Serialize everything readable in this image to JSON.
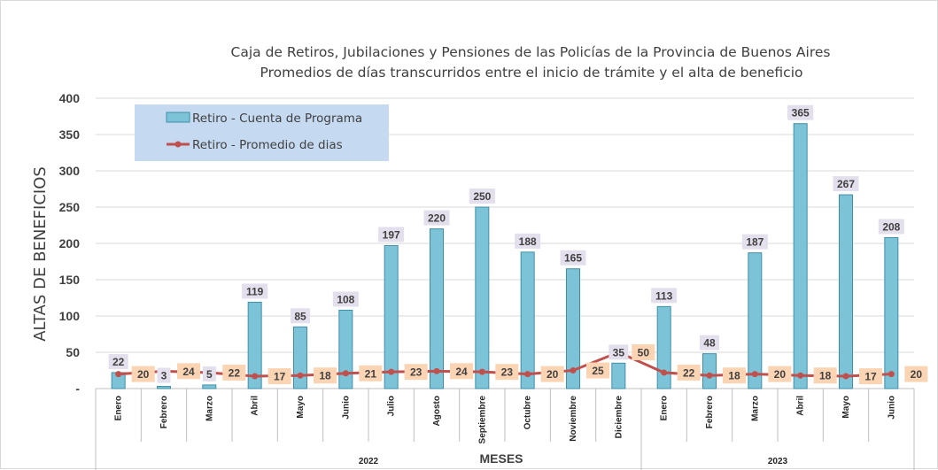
{
  "chart_data": {
    "type": "bar",
    "title": "Caja de Retiros, Jubilaciones y Pensiones de las Policías de la Provincia de Buenos Aires",
    "subtitle": "Promedios de días transcurridos entre el inicio de trámite y el alta de beneficio",
    "ylabel": "ALTAS DE BENEFICIOS",
    "xlabel": "MESES",
    "ylim": [
      0,
      400
    ],
    "yticks": [
      {
        "value": 0,
        "label": "-"
      },
      {
        "value": 50,
        "label": "50"
      },
      {
        "value": 100,
        "label": "100"
      },
      {
        "value": 150,
        "label": "150"
      },
      {
        "value": 200,
        "label": "200"
      },
      {
        "value": 250,
        "label": "250"
      },
      {
        "value": 300,
        "label": "300"
      },
      {
        "value": 350,
        "label": "350"
      },
      {
        "value": 400,
        "label": "400"
      }
    ],
    "grid": true,
    "legend_position": "top-left",
    "categories": [
      "Enero",
      "Febrero",
      "Marzo",
      "Abril",
      "Mayo",
      "Junio",
      "Julio",
      "Agosto",
      "Septiembre",
      "Octubre",
      "Noviembre",
      "Diciembre",
      "Enero",
      "Febrero",
      "Marzo",
      "Abril",
      "Mayo",
      "Junio"
    ],
    "groups": [
      {
        "label": "2022",
        "count": 12
      },
      {
        "label": "2023",
        "count": 6
      }
    ],
    "series": [
      {
        "name": "Retiro - Cuenta de Programa",
        "kind": "bar",
        "color": "#7dc3d7",
        "values": [
          22,
          3,
          5,
          119,
          85,
          108,
          197,
          220,
          250,
          188,
          165,
          35,
          113,
          48,
          187,
          365,
          267,
          208
        ]
      },
      {
        "name": "Retiro - Promedio de dias",
        "kind": "line",
        "color": "#c0504d",
        "values": [
          20,
          24,
          22,
          17,
          18,
          21,
          23,
          24,
          23,
          20,
          25,
          50,
          22,
          18,
          20,
          18,
          17,
          20
        ]
      }
    ],
    "colors": {
      "bar_fill": "#7dc3d7",
      "bar_stroke": "#3f8fa8",
      "bar_label_bg": "#e4dfec",
      "line": "#c0504d",
      "line_label_bg": "#fbd4b4",
      "legend_bg": "#c5d9f1",
      "grid": "#d9d9d9"
    }
  }
}
